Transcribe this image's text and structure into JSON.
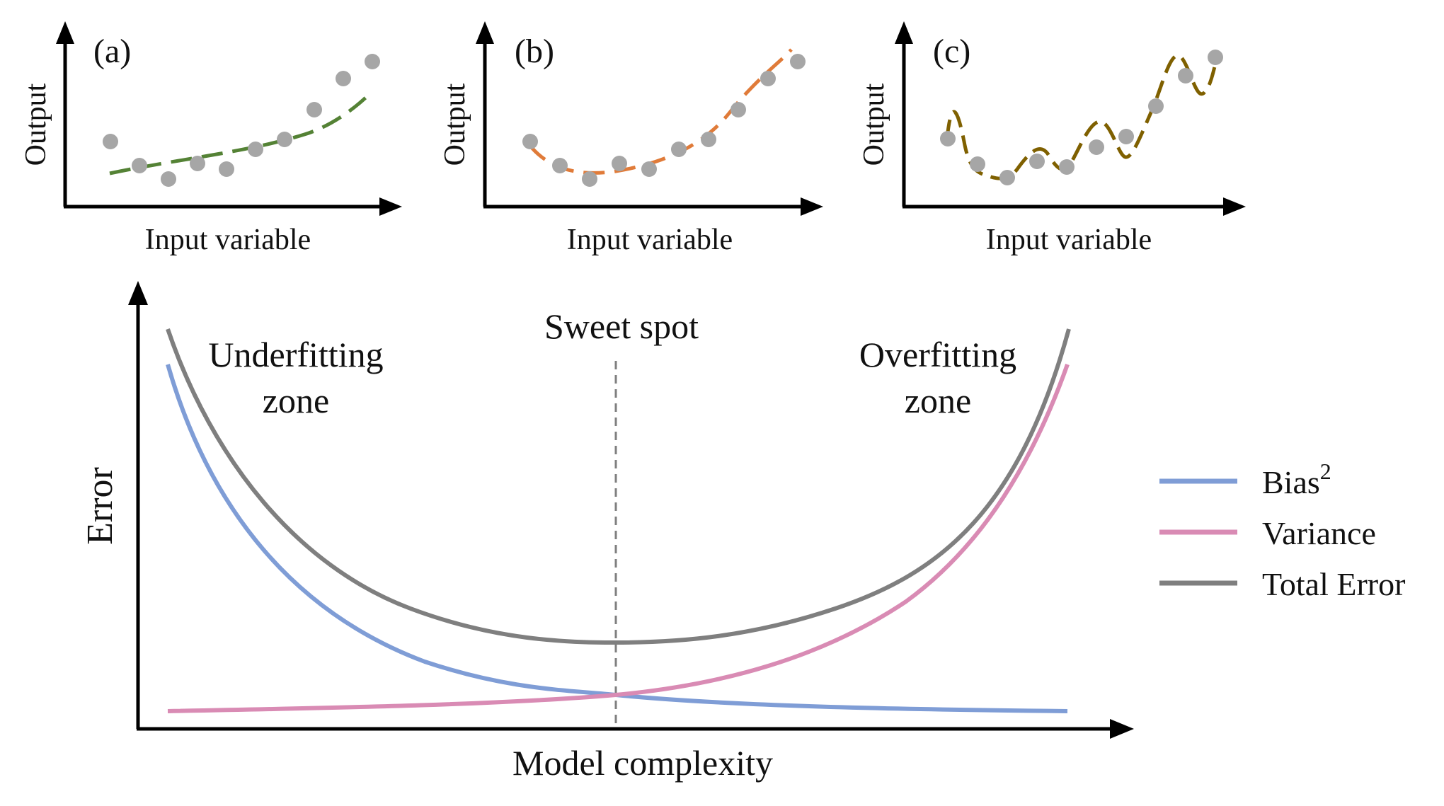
{
  "colors": {
    "axis": "#000000",
    "points": "#a6a6a6",
    "fit_a": "#548235",
    "fit_b": "#e07b39",
    "fit_c": "#7f6000",
    "bias": "#7f9dd6",
    "variance": "#d98bb4",
    "total": "#7f7f7f",
    "sweet_spot_line": "#7f7f7f"
  },
  "panels": [
    {
      "label": "(a)",
      "xlabel": "Input variable",
      "ylabel": "Output",
      "fit": "underfit"
    },
    {
      "label": "(b)",
      "xlabel": "Input variable",
      "ylabel": "Output",
      "fit": "good-fit"
    },
    {
      "label": "(c)",
      "xlabel": "Input variable",
      "ylabel": "Output",
      "fit": "overfit"
    }
  ],
  "main": {
    "xlabel": "Model complexity",
    "ylabel": "Error",
    "sweet_spot": "Sweet spot",
    "under_zone": [
      "Underfitting",
      "zone"
    ],
    "over_zone": [
      "Overfitting",
      "zone"
    ],
    "legend": {
      "bias": "Bias",
      "bias_sup": "2",
      "variance": "Variance",
      "total": "Total Error"
    }
  }
}
